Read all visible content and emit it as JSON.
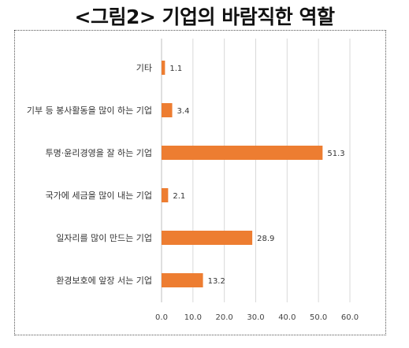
{
  "chart_data": {
    "type": "bar",
    "orientation": "horizontal",
    "title": "<그림2> 기업의 바람직한 역할",
    "categories": [
      "기타",
      "기부 등 봉사활동을 많이 하는 기업",
      "투명·윤리경영을 잘 하는 기업",
      "국가에 세금을 많이 내는 기업",
      "일자리를 많이 만드는 기업",
      "환경보호에 앞장 서는 기업"
    ],
    "values": [
      1.1,
      3.4,
      51.3,
      2.1,
      28.9,
      13.2
    ],
    "value_labels": [
      "1.1",
      "3.4",
      "51.3",
      "2.1",
      "28.9",
      "13.2"
    ],
    "xlim": [
      0,
      60
    ],
    "x_ticks": [
      "0.0",
      "10.0",
      "20.0",
      "30.0",
      "40.0",
      "50.0",
      "60.0"
    ],
    "bar_color": "#ed7d31",
    "grid": true,
    "legend": "none"
  }
}
